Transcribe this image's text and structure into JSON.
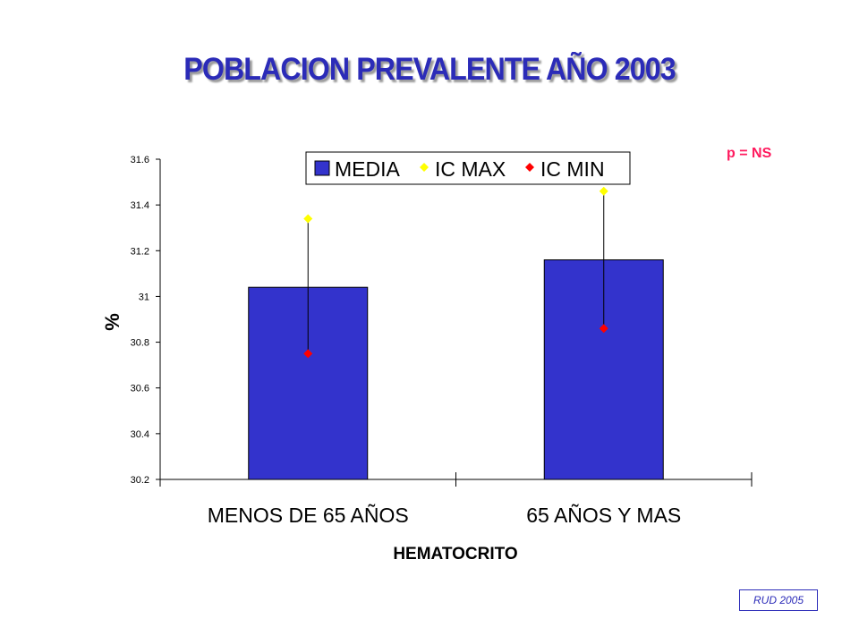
{
  "title": "POBLACION PREVALENTE AÑO 2003",
  "annotation": "p =  NS",
  "source": "RUD 2005",
  "colors": {
    "title": "#2b2bb8",
    "bar": "#3333cc",
    "ic_max": "#ffff00",
    "ic_min": "#ff0000",
    "annotation": "#ff1a5e"
  },
  "chart_data": {
    "type": "bar",
    "xlabel": "HEMATOCRITO",
    "ylabel": "%",
    "ylim": [
      30.2,
      31.6
    ],
    "yticks": [
      30.2,
      30.4,
      30.6,
      30.8,
      31,
      31.2,
      31.4,
      31.6
    ],
    "categories": [
      "MENOS DE 65 AÑOS",
      "65 AÑOS Y MAS"
    ],
    "series": [
      {
        "name": "MEDIA",
        "kind": "bar",
        "values": [
          31.04,
          31.16
        ]
      },
      {
        "name": "IC MAX",
        "kind": "marker",
        "values": [
          31.34,
          31.46
        ]
      },
      {
        "name": "IC MIN",
        "kind": "marker",
        "values": [
          30.75,
          30.86
        ]
      }
    ],
    "legend": "top",
    "grid": false
  }
}
